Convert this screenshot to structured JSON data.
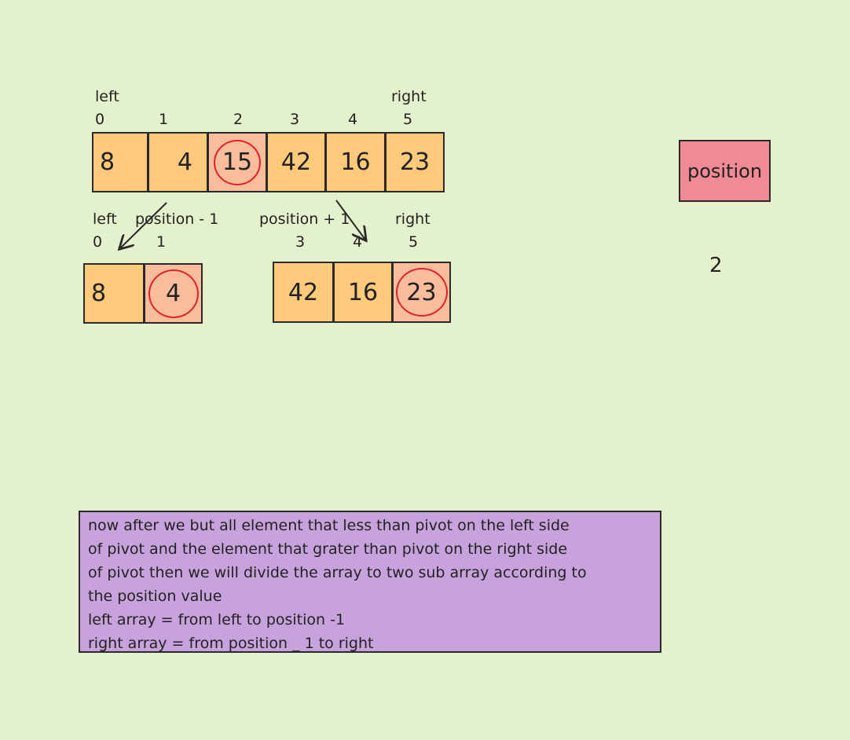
{
  "top_row": {
    "left_label": "left",
    "right_label": "right",
    "indices": [
      "0",
      "1",
      "2",
      "3",
      "4",
      "5"
    ],
    "values": [
      "8",
      "4",
      "15",
      "42",
      "16",
      "23"
    ]
  },
  "left_sub": {
    "left_label": "left",
    "position_label": "position -  1",
    "indices": [
      "0",
      "1"
    ],
    "values": [
      "8",
      "4"
    ]
  },
  "right_sub": {
    "position_label": "position + 1",
    "right_label": "right",
    "indices": [
      "3",
      "4",
      "5"
    ],
    "values": [
      "42",
      "16",
      "23"
    ]
  },
  "position": {
    "label": "position",
    "value": "2"
  },
  "note": {
    "lines": [
      "now after we but all element that less than pivot on the left side",
      "of pivot and the element that grater than pivot on the right side",
      "of pivot then we will divide the array to two sub array according to",
      "the position value",
      "left array = from left to position -1",
      "right array = from position _ 1 to right"
    ]
  },
  "colors": {
    "background": "#e3f2cc",
    "cell": "#fdc97a",
    "pivot_cell": "#f9bd9c",
    "pivot_ring": "#e0202a",
    "position_box": "#f08a94",
    "note_box": "#c8a2dc"
  }
}
